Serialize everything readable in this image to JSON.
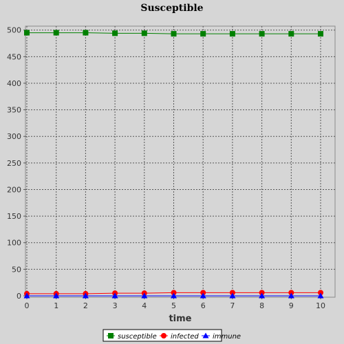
{
  "chart_data": {
    "type": "line",
    "title": "Susceptible",
    "xlabel": "time",
    "ylabel": "",
    "xlim": [
      0,
      10.5
    ],
    "ylim": [
      0,
      520
    ],
    "x_ticks": [
      0,
      1,
      2,
      3,
      4,
      5,
      6,
      7,
      8,
      9,
      10
    ],
    "y_ticks": [
      0,
      50,
      100,
      150,
      200,
      250,
      300,
      350,
      400,
      450,
      500
    ],
    "grid": true,
    "legend_position": "bottom-center",
    "x": [
      0,
      1,
      2,
      3,
      4,
      5,
      6,
      7,
      8,
      9,
      10
    ],
    "series": [
      {
        "name": "susceptible",
        "color": "#008000",
        "marker": "square",
        "values": [
          495,
          495,
          495,
          494,
          494,
          493,
          493,
          493,
          493,
          493,
          493
        ]
      },
      {
        "name": "infected",
        "color": "#ff0000",
        "marker": "circle",
        "values": [
          4,
          4,
          4,
          5,
          5,
          6,
          6,
          6,
          6,
          6,
          6
        ]
      },
      {
        "name": "immune",
        "color": "#0000ff",
        "marker": "triangle",
        "values": [
          0,
          0,
          0,
          0,
          0,
          0,
          0,
          0,
          0,
          0,
          0
        ]
      }
    ]
  }
}
